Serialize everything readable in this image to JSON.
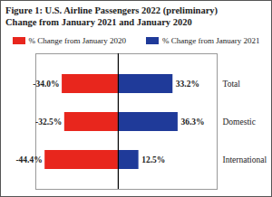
{
  "chart_data": {
    "type": "bar",
    "title": "Figure 1: U.S. Airline Passengers 2022 (preliminary)",
    "subtitle": "Change from January 2021 and January 2020",
    "orientation": "horizontal",
    "categories": [
      "Total",
      "Domestic",
      "International"
    ],
    "series": [
      {
        "name": "% Change from January 2020",
        "color": "#e8261d",
        "values": [
          -34.0,
          -32.5,
          -44.4
        ],
        "value_labels": [
          "-34.0%",
          "-32.5%",
          "-44.4%"
        ]
      },
      {
        "name": "% Change from January 2021",
        "color": "#1f3a99",
        "values": [
          33.2,
          36.3,
          12.5
        ],
        "value_labels": [
          "33.2%",
          "36.3%",
          "12.5%"
        ]
      }
    ],
    "xlim": [
      -50,
      60
    ],
    "xticks": [
      0
    ],
    "data_labels": true,
    "tick_labels": "y",
    "legend": "top"
  }
}
